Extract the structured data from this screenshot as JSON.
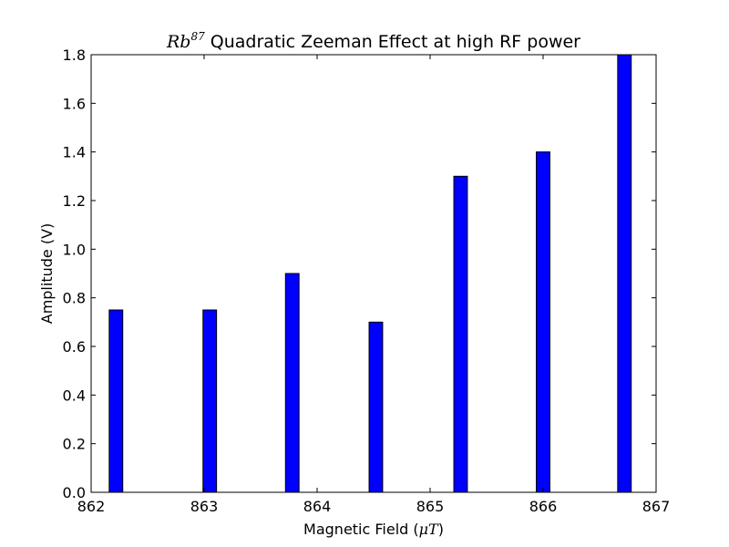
{
  "chart_data": {
    "type": "bar",
    "title": "Rb87 Quadratic Zeeman Effect at high RF power",
    "title_parts": {
      "element": "Rb",
      "superscript": "87",
      "rest": " Quadratic Zeeman Effect at high RF power"
    },
    "xlabel": "Magnetic Field (μT)",
    "xlabel_parts": {
      "text": "Magnetic Field (",
      "math": "μT",
      "close": ")"
    },
    "ylabel": "Amplitude (V)",
    "xlim": [
      862,
      867
    ],
    "ylim": [
      0,
      1.8
    ],
    "xticks": [
      862,
      863,
      864,
      865,
      866,
      867
    ],
    "yticks": [
      0.0,
      0.2,
      0.4,
      0.6,
      0.8,
      1.0,
      1.2,
      1.4,
      1.6,
      1.8
    ],
    "bar_width": 0.12,
    "x": [
      862.22,
      863.05,
      863.78,
      864.52,
      865.27,
      866.0,
      866.72
    ],
    "values": [
      0.75,
      0.75,
      0.9,
      0.7,
      1.3,
      1.4,
      1.8
    ],
    "bar_color": "#0000ff",
    "edge_color": "#000000",
    "grid": false
  }
}
